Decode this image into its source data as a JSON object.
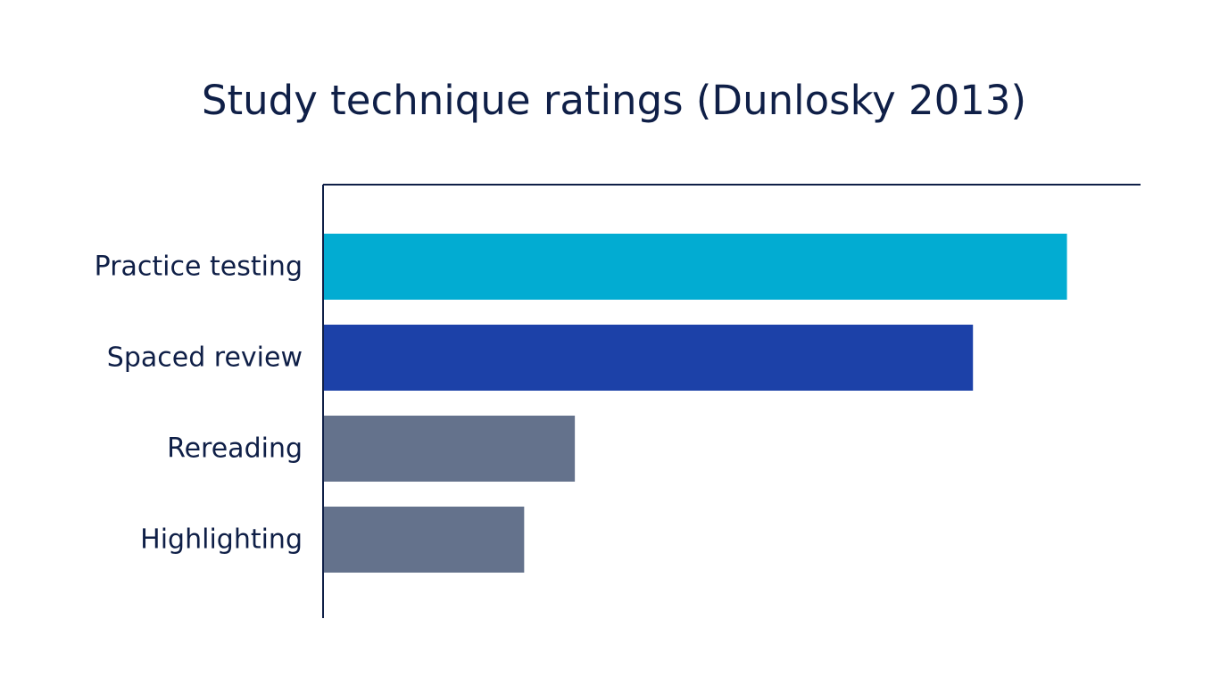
{
  "chart_data": {
    "type": "bar",
    "orientation": "horizontal",
    "title": "Study technique ratings (Dunlosky 2013)",
    "xlabel": "",
    "ylabel": "",
    "categories": [
      "Practice testing",
      "Spaced review",
      "Rereading",
      "Highlighting"
    ],
    "values": [
      91,
      79.5,
      30.8,
      24.6
    ],
    "xlim": [
      0,
      100
    ],
    "colors": [
      "#02acd2",
      "#1c41a8",
      "#64728c",
      "#64728c"
    ],
    "text_color": "#0f1f47",
    "grid": false,
    "legend": "none"
  }
}
